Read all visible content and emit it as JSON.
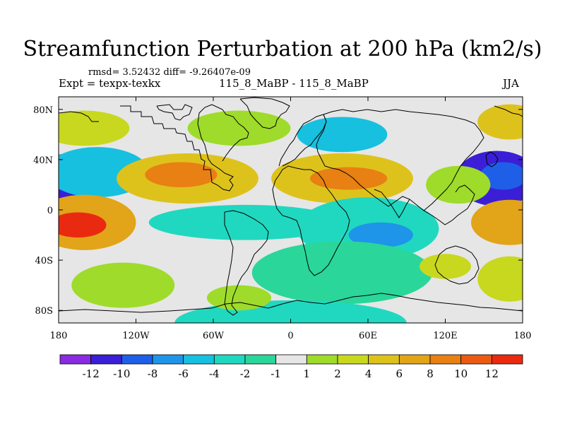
{
  "header": {
    "title": "Streamfunction Perturbation at 200 hPa (km2/s)",
    "stats": "rmsd= 3.52432 diff= -9.26407e-09",
    "expt": "Expt = texpx-texkx",
    "case": "115_8_MaBP - 115_8_MaBP",
    "season": "JJA"
  },
  "map": {
    "projection": "cylindrical equidistant",
    "lon_range": [
      -180,
      180
    ],
    "lat_range": [
      -90,
      90
    ],
    "x_ticks": [
      {
        "value": -180,
        "label": "180"
      },
      {
        "value": -120,
        "label": "120W"
      },
      {
        "value": -60,
        "label": "60W"
      },
      {
        "value": 0,
        "label": "0"
      },
      {
        "value": 60,
        "label": "60E"
      },
      {
        "value": 120,
        "label": "120E"
      },
      {
        "value": 180,
        "label": "180"
      }
    ],
    "y_ticks": [
      {
        "value": 80,
        "label": "80N"
      },
      {
        "value": 40,
        "label": "40N"
      },
      {
        "value": 0,
        "label": "0"
      },
      {
        "value": -40,
        "label": "40S"
      },
      {
        "value": -80,
        "label": "80S"
      }
    ],
    "background_color": "#e6e6e6",
    "coastline_color": "#000000"
  },
  "colorbar": {
    "colors": [
      "#8a2be2",
      "#3a1fd6",
      "#1f5fe8",
      "#1e95e8",
      "#17c0de",
      "#20d8c0",
      "#2ad69a",
      "#e6e6e6",
      "#9fdb2a",
      "#c8d81e",
      "#dec21c",
      "#e2a418",
      "#e88014",
      "#ea5a12",
      "#ea2a10"
    ],
    "labels": [
      "-12",
      "-10",
      "-8",
      "-6",
      "-4",
      "-2",
      "-1",
      "1",
      "2",
      "4",
      "6",
      "8",
      "10",
      "12"
    ]
  },
  "field_blobs": [
    {
      "lon": -170,
      "lat": 25,
      "rlon": 30,
      "rlat": 20,
      "level": 1
    },
    {
      "lon": -172,
      "lat": 27,
      "rlon": 18,
      "rlat": 11,
      "level": 2
    },
    {
      "lon": 160,
      "lat": 25,
      "rlon": 32,
      "rlat": 22,
      "level": 1
    },
    {
      "lon": 165,
      "lat": 27,
      "rlon": 18,
      "rlat": 11,
      "level": 2
    },
    {
      "lon": -150,
      "lat": 30,
      "rlon": 40,
      "rlat": 20,
      "level": 4
    },
    {
      "lon": -160,
      "lat": -10,
      "rlon": 40,
      "rlat": 22,
      "level": 11
    },
    {
      "lon": -165,
      "lat": -12,
      "rlon": 22,
      "rlat": 10,
      "level": 14
    },
    {
      "lon": -80,
      "lat": 25,
      "rlon": 55,
      "rlat": 20,
      "level": 10
    },
    {
      "lon": -85,
      "lat": 28,
      "rlon": 28,
      "rlat": 10,
      "level": 12
    },
    {
      "lon": 40,
      "lat": 25,
      "rlon": 55,
      "rlat": 20,
      "level": 10
    },
    {
      "lon": 45,
      "lat": 25,
      "rlon": 30,
      "rlat": 9,
      "level": 12
    },
    {
      "lon": 40,
      "lat": 60,
      "rlon": 35,
      "rlat": 14,
      "level": 4
    },
    {
      "lon": -160,
      "lat": 65,
      "rlon": 35,
      "rlat": 14,
      "level": 9
    },
    {
      "lon": 170,
      "lat": 70,
      "rlon": 25,
      "rlat": 14,
      "level": 10
    },
    {
      "lon": -40,
      "lat": 65,
      "rlon": 40,
      "rlat": 14,
      "level": 8
    },
    {
      "lon": -35,
      "lat": -10,
      "rlon": 75,
      "rlat": 14,
      "level": 5
    },
    {
      "lon": 60,
      "lat": -15,
      "rlon": 55,
      "rlat": 25,
      "level": 5
    },
    {
      "lon": 70,
      "lat": -20,
      "rlon": 25,
      "rlat": 10,
      "level": 3
    },
    {
      "lon": 40,
      "lat": -50,
      "rlon": 70,
      "rlat": 25,
      "level": 6
    },
    {
      "lon": 0,
      "lat": -90,
      "rlon": 90,
      "rlat": 18,
      "level": 5
    },
    {
      "lon": 170,
      "lat": -10,
      "rlon": 30,
      "rlat": 18,
      "level": 11
    },
    {
      "lon": 170,
      "lat": -55,
      "rlon": 25,
      "rlat": 18,
      "level": 9
    },
    {
      "lon": -40,
      "lat": -70,
      "rlon": 25,
      "rlat": 10,
      "level": 8
    },
    {
      "lon": 120,
      "lat": -45,
      "rlon": 20,
      "rlat": 10,
      "level": 9
    },
    {
      "lon": 130,
      "lat": 20,
      "rlon": 25,
      "rlat": 15,
      "level": 8
    },
    {
      "lon": -130,
      "lat": -60,
      "rlon": 40,
      "rlat": 18,
      "level": 8
    }
  ]
}
